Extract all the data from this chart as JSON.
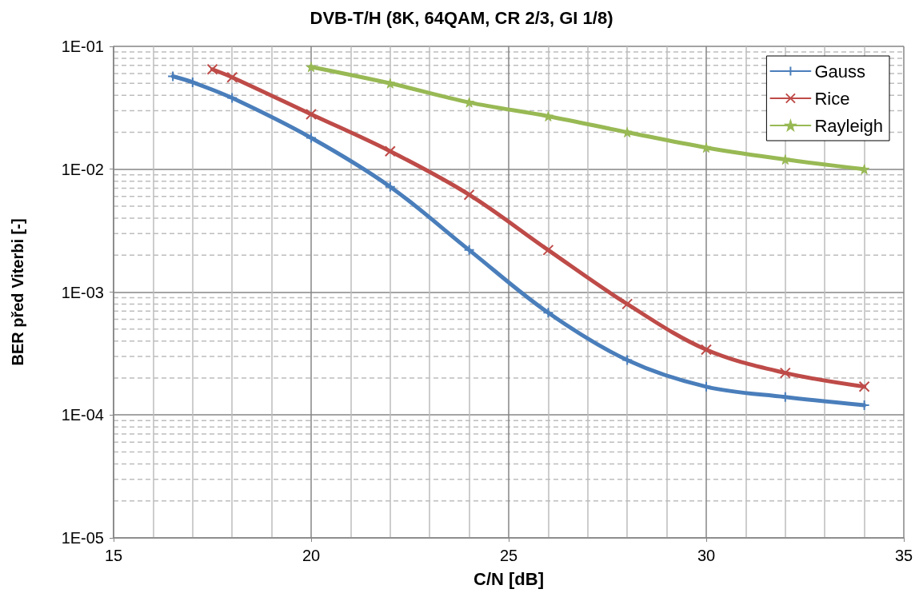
{
  "chart_data": {
    "type": "line",
    "title": "DVB-T/H (8K, 64QAM, CR 2/3, GI 1/8)",
    "xlabel": "C/N [dB]",
    "ylabel": "BER před Viterbi [-]",
    "log": "y",
    "grid": true,
    "legend": "top right",
    "xlim": [
      15,
      35
    ],
    "xticks": [
      15,
      20,
      25,
      30,
      35
    ],
    "ylim": [
      1e-05,
      0.1
    ],
    "yticks": [
      {
        "value": 1e-05,
        "label": "1E-05"
      },
      {
        "value": 0.0001,
        "label": "1E-04"
      },
      {
        "value": 0.001,
        "label": "1E-03"
      },
      {
        "value": 0.01,
        "label": "1E-02"
      },
      {
        "value": 0.1,
        "label": "1E-01"
      }
    ],
    "series": [
      {
        "name": "Gauss",
        "color": "#4a7ebb",
        "marker": "cross",
        "x": [
          16.5,
          17,
          18,
          20,
          22,
          24,
          26,
          28,
          30,
          32,
          34
        ],
        "values": [
          0.057,
          0.051,
          0.038,
          0.018,
          0.0072,
          0.0022,
          0.00068,
          0.00028,
          0.00017,
          0.00014,
          0.00012
        ]
      },
      {
        "name": "Rice",
        "color": "#be4b48",
        "marker": "x",
        "x": [
          17.5,
          18,
          20,
          22,
          24,
          26,
          28,
          30,
          32,
          34
        ],
        "values": [
          0.065,
          0.056,
          0.028,
          0.014,
          0.0062,
          0.0022,
          0.0008,
          0.00034,
          0.00022,
          0.00017
        ]
      },
      {
        "name": "Rayleigh",
        "color": "#98b954",
        "marker": "star",
        "x": [
          20,
          22,
          24,
          26,
          28,
          30,
          32,
          34
        ],
        "values": [
          0.068,
          0.05,
          0.035,
          0.027,
          0.02,
          0.015,
          0.012,
          0.01
        ]
      }
    ]
  }
}
